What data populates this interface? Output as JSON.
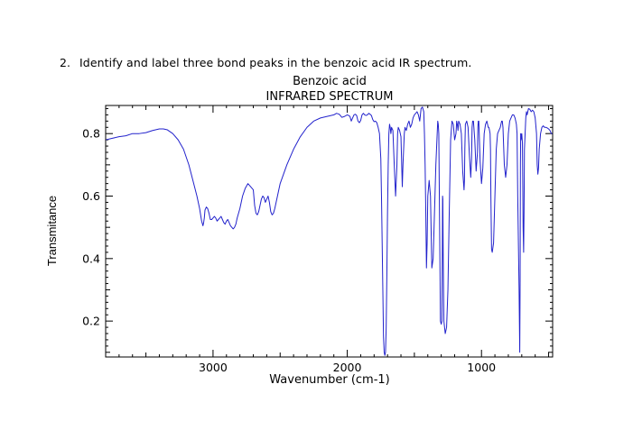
{
  "question": {
    "number": "2.",
    "text": "Identify and label three bond peaks in the benzoic acid IR spectrum."
  },
  "chart_data": {
    "type": "line",
    "title": "Benzoic acid",
    "subtitle": "INFRARED SPECTRUM",
    "xlabel": "Wavenumber (cm-1)",
    "ylabel": "Transmitance",
    "xlim": [
      3800,
      470
    ],
    "ylim": [
      0.085,
      0.89
    ],
    "x_reversed": true,
    "grid": false,
    "line_color": "#2222cc",
    "x_ticks": [
      3000,
      2000,
      1000
    ],
    "x_tick_labels": [
      "3000",
      "2000",
      "1000"
    ],
    "y_ticks": [
      0.2,
      0.4,
      0.6,
      0.8
    ],
    "y_tick_labels": [
      "0.2",
      "0.4",
      "0.6",
      "0.8"
    ],
    "series": [
      {
        "x": [
          3800,
          3750,
          3700,
          3650,
          3600,
          3550,
          3500,
          3450,
          3400,
          3370,
          3340,
          3300,
          3260,
          3220,
          3180,
          3150,
          3120,
          3100,
          3085,
          3075,
          3070,
          3065,
          3060,
          3050,
          3040,
          3030,
          3020,
          3010,
          3000,
          2990,
          2980,
          2970,
          2960,
          2950,
          2940,
          2930,
          2920,
          2910,
          2900,
          2890,
          2880,
          2870,
          2860,
          2850,
          2840,
          2830,
          2820,
          2800,
          2780,
          2760,
          2740,
          2720,
          2700,
          2690,
          2680,
          2670,
          2660,
          2650,
          2640,
          2630,
          2620,
          2610,
          2600,
          2590,
          2580,
          2570,
          2560,
          2550,
          2540,
          2520,
          2500,
          2450,
          2400,
          2350,
          2300,
          2250,
          2200,
          2150,
          2100,
          2080,
          2060,
          2040,
          2020,
          2000,
          1990,
          1980,
          1970,
          1960,
          1950,
          1940,
          1930,
          1920,
          1910,
          1900,
          1890,
          1880,
          1870,
          1860,
          1850,
          1840,
          1830,
          1820,
          1810,
          1800,
          1790,
          1780,
          1770,
          1760,
          1750,
          1745,
          1740,
          1735,
          1730,
          1725,
          1720,
          1715,
          1710,
          1705,
          1700,
          1695,
          1690,
          1685,
          1680,
          1675,
          1670,
          1660,
          1650,
          1640,
          1630,
          1625,
          1620,
          1610,
          1600,
          1590,
          1585,
          1580,
          1575,
          1570,
          1560,
          1550,
          1540,
          1530,
          1520,
          1510,
          1500,
          1490,
          1480,
          1470,
          1460,
          1455,
          1450,
          1440,
          1430,
          1425,
          1420,
          1415,
          1410,
          1405,
          1400,
          1390,
          1380,
          1370,
          1360,
          1350,
          1340,
          1330,
          1326,
          1322,
          1318,
          1314,
          1310,
          1306,
          1300,
          1295,
          1292,
          1290,
          1288,
          1285,
          1280,
          1270,
          1260,
          1250,
          1240,
          1230,
          1220,
          1210,
          1200,
          1190,
          1185,
          1180,
          1175,
          1170,
          1160,
          1150,
          1140,
          1130,
          1127,
          1124,
          1120,
          1110,
          1100,
          1090,
          1080,
          1074,
          1070,
          1066,
          1060,
          1050,
          1040,
          1030,
          1027,
          1024,
          1020,
          1010,
          1000,
          990,
          980,
          970,
          960,
          950,
          945,
          940,
          936,
          933,
          930,
          925,
          920,
          910,
          900,
          890,
          880,
          870,
          860,
          855,
          850,
          845,
          840,
          830,
          820,
          810,
          800,
          790,
          780,
          770,
          760,
          750,
          745,
          740,
          735,
          730,
          720,
          715,
          712,
          710,
          708,
          705,
          700,
          695,
          690,
          686,
          683,
          680,
          675,
          670,
          665,
          660,
          650,
          640,
          630,
          620,
          610,
          600,
          590,
          585,
          580,
          575,
          570,
          560,
          550,
          540,
          530,
          520,
          510,
          500,
          490,
          480,
          470
        ],
        "y": [
          0.78,
          0.785,
          0.79,
          0.793,
          0.8,
          0.8,
          0.803,
          0.81,
          0.815,
          0.815,
          0.812,
          0.8,
          0.78,
          0.75,
          0.7,
          0.65,
          0.6,
          0.56,
          0.52,
          0.505,
          0.515,
          0.53,
          0.555,
          0.565,
          0.56,
          0.545,
          0.525,
          0.525,
          0.53,
          0.535,
          0.53,
          0.52,
          0.525,
          0.53,
          0.535,
          0.525,
          0.515,
          0.51,
          0.52,
          0.525,
          0.515,
          0.505,
          0.5,
          0.495,
          0.5,
          0.51,
          0.53,
          0.56,
          0.6,
          0.625,
          0.64,
          0.63,
          0.62,
          0.57,
          0.545,
          0.54,
          0.55,
          0.57,
          0.59,
          0.6,
          0.595,
          0.58,
          0.59,
          0.6,
          0.58,
          0.55,
          0.54,
          0.545,
          0.56,
          0.6,
          0.64,
          0.7,
          0.75,
          0.79,
          0.82,
          0.84,
          0.85,
          0.855,
          0.86,
          0.865,
          0.862,
          0.852,
          0.855,
          0.86,
          0.858,
          0.855,
          0.84,
          0.85,
          0.86,
          0.862,
          0.858,
          0.84,
          0.835,
          0.842,
          0.86,
          0.865,
          0.86,
          0.858,
          0.86,
          0.865,
          0.862,
          0.858,
          0.845,
          0.838,
          0.84,
          0.835,
          0.82,
          0.8,
          0.72,
          0.6,
          0.45,
          0.3,
          0.15,
          0.1,
          0.09,
          0.1,
          0.18,
          0.35,
          0.55,
          0.7,
          0.8,
          0.83,
          0.82,
          0.8,
          0.82,
          0.81,
          0.7,
          0.6,
          0.7,
          0.8,
          0.82,
          0.81,
          0.79,
          0.63,
          0.7,
          0.75,
          0.8,
          0.82,
          0.81,
          0.83,
          0.84,
          0.82,
          0.83,
          0.85,
          0.86,
          0.865,
          0.87,
          0.86,
          0.84,
          0.86,
          0.88,
          0.885,
          0.87,
          0.8,
          0.7,
          0.55,
          0.37,
          0.45,
          0.6,
          0.65,
          0.6,
          0.37,
          0.4,
          0.55,
          0.7,
          0.8,
          0.84,
          0.83,
          0.8,
          0.6,
          0.4,
          0.2,
          0.19,
          0.2,
          0.4,
          0.6,
          0.59,
          0.4,
          0.2,
          0.16,
          0.18,
          0.3,
          0.55,
          0.78,
          0.84,
          0.83,
          0.78,
          0.8,
          0.84,
          0.83,
          0.81,
          0.84,
          0.83,
          0.8,
          0.68,
          0.62,
          0.65,
          0.75,
          0.83,
          0.84,
          0.82,
          0.73,
          0.66,
          0.72,
          0.82,
          0.84,
          0.84,
          0.78,
          0.68,
          0.74,
          0.82,
          0.84,
          0.84,
          0.71,
          0.64,
          0.69,
          0.8,
          0.83,
          0.84,
          0.82,
          0.82,
          0.81,
          0.8,
          0.75,
          0.6,
          0.43,
          0.42,
          0.45,
          0.6,
          0.75,
          0.8,
          0.81,
          0.82,
          0.83,
          0.84,
          0.84,
          0.82,
          0.7,
          0.66,
          0.7,
          0.8,
          0.84,
          0.85,
          0.86,
          0.86,
          0.85,
          0.84,
          0.83,
          0.8,
          0.6,
          0.3,
          0.1,
          0.35,
          0.7,
          0.8,
          0.78,
          0.8,
          0.77,
          0.5,
          0.42,
          0.55,
          0.75,
          0.8,
          0.85,
          0.87,
          0.86,
          0.88,
          0.878,
          0.87,
          0.875,
          0.87,
          0.85,
          0.8,
          0.7,
          0.67,
          0.69,
          0.75,
          0.8,
          0.82,
          0.825,
          0.82,
          0.82,
          0.818,
          0.815,
          0.81,
          0.8,
          0.8
        ]
      }
    ]
  }
}
